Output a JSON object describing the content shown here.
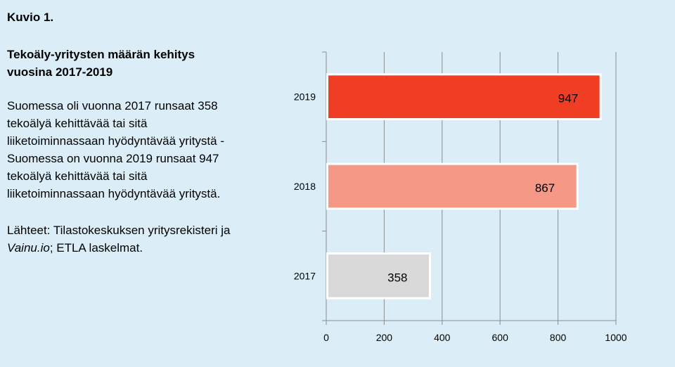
{
  "figure_label": "Kuvio 1.",
  "title": "Tekoäly-yritysten määrän kehitys vuosina 2017-2019",
  "description": "Suomessa oli vuonna 2017 runsaat 358 tekoälyä kehittävää tai sitä liiketoiminnassaan hyödyntävää yritystä - Suomessa on vuonna 2019 runsaat 947 tekoälyä kehittävää tai sitä liiketoiminnassaan hyödyntävää yritystä.",
  "source": {
    "prefix": "Lähteet: Tilastokeskuksen yritysrekisteri ja ",
    "italic": "Vainu.io",
    "suffix": "; ETLA laskelmat."
  },
  "chart_data": {
    "type": "bar",
    "orientation": "horizontal",
    "categories": [
      "2019",
      "2018",
      "2017"
    ],
    "values": [
      947,
      867,
      358
    ],
    "colors": [
      "#ef3e23",
      "#f59886",
      "#d9d9d9"
    ],
    "xlim": [
      0,
      1000
    ],
    "xticks": [
      0,
      200,
      400,
      600,
      800,
      1000
    ],
    "grid": "vertical",
    "legend": "none"
  }
}
